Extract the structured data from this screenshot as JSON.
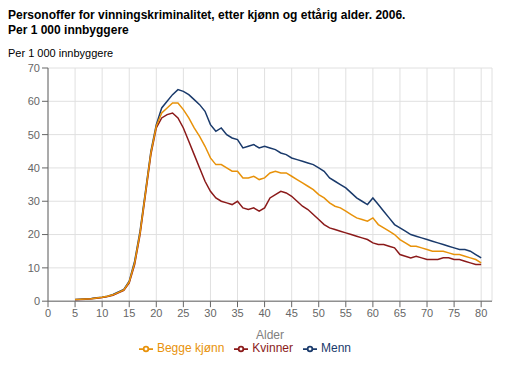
{
  "chart_data": {
    "type": "line",
    "title": "Personoffer for vinningskriminalitet, etter kjønn og ettårig alder. 2006.",
    "subtitle": "Per 1 000 innbyggere",
    "ylabel": "Per 1 000 innbyggere",
    "xlabel": "Alder",
    "xlim": [
      0,
      82
    ],
    "ylim": [
      0,
      70
    ],
    "xticks": [
      0,
      5,
      10,
      15,
      20,
      25,
      30,
      35,
      40,
      45,
      50,
      55,
      60,
      65,
      70,
      75,
      80
    ],
    "yticks": [
      0,
      10,
      20,
      30,
      40,
      50,
      60,
      70
    ],
    "grid": true,
    "legend": "bottom",
    "x": [
      5,
      6,
      7,
      8,
      9,
      10,
      11,
      12,
      13,
      14,
      15,
      16,
      17,
      18,
      19,
      20,
      21,
      22,
      23,
      24,
      25,
      26,
      27,
      28,
      29,
      30,
      31,
      32,
      33,
      34,
      35,
      36,
      37,
      38,
      39,
      40,
      41,
      42,
      43,
      44,
      45,
      46,
      47,
      48,
      49,
      50,
      51,
      52,
      53,
      54,
      55,
      56,
      57,
      58,
      59,
      60,
      61,
      62,
      63,
      64,
      65,
      66,
      67,
      68,
      69,
      70,
      71,
      72,
      73,
      74,
      75,
      76,
      77,
      78,
      79,
      80
    ],
    "series": [
      {
        "name": "Menn",
        "color": "#1a3a6b",
        "values": [
          0.5,
          0.6,
          0.7,
          0.8,
          1.0,
          1.2,
          1.5,
          2.0,
          2.8,
          3.5,
          6.0,
          12.0,
          21.0,
          33.0,
          45.0,
          53.0,
          58.0,
          60.0,
          62.0,
          63.5,
          63.0,
          62.0,
          60.5,
          59.0,
          57.0,
          53.0,
          51.0,
          52.0,
          50.0,
          49.0,
          48.5,
          46.0,
          46.5,
          47.0,
          46.0,
          46.5,
          46.0,
          45.5,
          44.5,
          44.0,
          43.0,
          42.5,
          42.0,
          41.5,
          41.0,
          40.0,
          39.0,
          37.0,
          36.0,
          35.0,
          34.0,
          32.5,
          31.0,
          30.0,
          29.0,
          31.0,
          29.0,
          27.0,
          25.0,
          23.0,
          22.0,
          21.0,
          20.0,
          19.5,
          19.0,
          18.5,
          18.0,
          17.5,
          17.0,
          16.5,
          16.0,
          15.5,
          15.5,
          15.0,
          14.0,
          13.0
        ]
      },
      {
        "name": "Kvinner",
        "color": "#8B1a1a",
        "values": [
          0.4,
          0.5,
          0.6,
          0.7,
          0.9,
          1.1,
          1.4,
          1.8,
          2.5,
          3.2,
          5.5,
          11.0,
          20.0,
          32.0,
          44.0,
          52.0,
          55.0,
          56.0,
          56.5,
          55.0,
          52.0,
          48.0,
          44.0,
          40.0,
          36.0,
          33.0,
          31.0,
          30.0,
          29.5,
          29.0,
          30.0,
          28.0,
          27.5,
          28.0,
          27.0,
          28.0,
          31.0,
          32.0,
          33.0,
          32.5,
          31.5,
          30.0,
          28.5,
          27.5,
          26.0,
          24.5,
          23.0,
          22.0,
          21.5,
          21.0,
          20.5,
          20.0,
          19.5,
          19.0,
          18.5,
          17.5,
          17.0,
          17.0,
          16.5,
          16.0,
          14.0,
          13.5,
          13.0,
          13.5,
          13.0,
          12.5,
          12.5,
          12.5,
          13.0,
          13.0,
          12.5,
          12.5,
          12.0,
          11.5,
          11.0,
          11.0
        ]
      },
      {
        "name": "Begge kjønn",
        "color": "#E8920A",
        "values": [
          0.5,
          0.55,
          0.65,
          0.75,
          0.95,
          1.15,
          1.45,
          1.9,
          2.65,
          3.35,
          5.75,
          11.5,
          20.5,
          32.5,
          44.5,
          52.5,
          56.5,
          58.0,
          59.5,
          59.5,
          57.5,
          55.0,
          52.0,
          49.5,
          46.5,
          43.0,
          41.0,
          41.0,
          40.0,
          39.0,
          39.0,
          37.0,
          37.0,
          37.5,
          36.5,
          37.0,
          38.5,
          39.0,
          38.5,
          38.5,
          37.5,
          36.5,
          35.5,
          34.5,
          33.5,
          32.0,
          31.0,
          29.5,
          28.5,
          28.0,
          27.0,
          26.0,
          25.0,
          24.5,
          24.0,
          25.0,
          23.0,
          22.0,
          21.0,
          20.0,
          18.5,
          17.5,
          16.5,
          16.5,
          16.0,
          15.5,
          15.0,
          15.0,
          15.0,
          14.5,
          14.0,
          14.0,
          13.5,
          13.0,
          12.5,
          11.5
        ]
      }
    ]
  }
}
